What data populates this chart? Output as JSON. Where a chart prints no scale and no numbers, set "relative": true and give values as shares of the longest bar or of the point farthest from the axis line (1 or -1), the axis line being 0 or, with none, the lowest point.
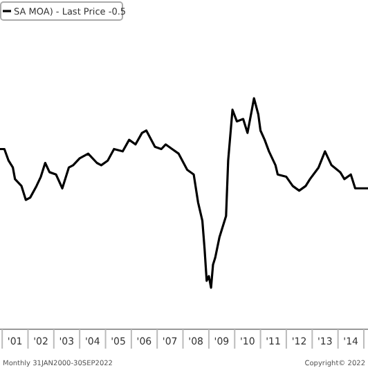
{
  "chart_data": {
    "type": "line",
    "relative": true,
    "legend": "top left",
    "line_style": "solid",
    "marker": "none",
    "x": [
      "2000-12",
      "2001-02",
      "2001-04",
      "2001-06",
      "2001-07",
      "2001-10",
      "2001-12",
      "2002-02",
      "2002-05",
      "2002-07",
      "2002-09",
      "2002-11",
      "2003-02",
      "2003-05",
      "2003-08",
      "2003-10",
      "2004-01",
      "2004-05",
      "2004-09",
      "2004-11",
      "2005-02",
      "2005-05",
      "2005-09",
      "2005-12",
      "2006-03",
      "2006-06",
      "2006-08",
      "2006-12",
      "2007-03",
      "2007-05",
      "2007-08",
      "2007-11",
      "2008-03",
      "2008-06",
      "2008-08",
      "2008-10",
      "2008-11",
      "2008-12",
      "2009-01",
      "2009-02",
      "2009-03",
      "2009-04",
      "2009-06",
      "2009-09",
      "2009-10",
      "2009-12",
      "2010-02",
      "2010-05",
      "2010-07",
      "2010-09",
      "2010-10",
      "2010-12",
      "2011-01",
      "2011-03",
      "2011-05",
      "2011-08",
      "2011-09",
      "2012-01",
      "2012-04",
      "2012-07",
      "2012-10",
      "2012-12",
      "2013-04",
      "2013-07",
      "2013-10",
      "2014-02",
      "2014-04",
      "2014-07",
      "2014-09",
      "2014-12",
      "2015-03"
    ],
    "series": [
      {
        "name": "SA MOA) - Last Price -0.5",
        "color": "#000000",
        "values": [
          0.78,
          0.78,
          0.73,
          0.7,
          0.65,
          0.62,
          0.56,
          0.57,
          0.62,
          0.66,
          0.72,
          0.68,
          0.67,
          0.61,
          0.7,
          0.71,
          0.74,
          0.76,
          0.72,
          0.71,
          0.73,
          0.78,
          0.77,
          0.82,
          0.8,
          0.85,
          0.86,
          0.79,
          0.78,
          0.8,
          0.78,
          0.76,
          0.69,
          0.67,
          0.55,
          0.47,
          0.35,
          0.21,
          0.23,
          0.18,
          0.28,
          0.31,
          0.4,
          0.49,
          0.73,
          0.95,
          0.9,
          0.91,
          0.85,
          0.95,
          1.0,
          0.93,
          0.86,
          0.82,
          0.77,
          0.71,
          0.67,
          0.66,
          0.62,
          0.6,
          0.62,
          0.65,
          0.7,
          0.77,
          0.71,
          0.68,
          0.65,
          0.67,
          0.61,
          0.61,
          0.61
        ]
      }
    ],
    "xlim": [
      "2000-12",
      "2015-03"
    ],
    "xticks": [
      {
        "value": "2001-01",
        "label": null
      },
      {
        "value": "2001-07",
        "label": "'01"
      },
      {
        "value": "2002-01",
        "label": null
      },
      {
        "value": "2002-07",
        "label": "'02"
      },
      {
        "value": "2003-01",
        "label": null
      },
      {
        "value": "2003-07",
        "label": "'03"
      },
      {
        "value": "2004-01",
        "label": null
      },
      {
        "value": "2004-07",
        "label": "'04"
      },
      {
        "value": "2005-01",
        "label": null
      },
      {
        "value": "2005-07",
        "label": "'05"
      },
      {
        "value": "2006-01",
        "label": null
      },
      {
        "value": "2006-07",
        "label": "'06"
      },
      {
        "value": "2007-01",
        "label": null
      },
      {
        "value": "2007-07",
        "label": "'07"
      },
      {
        "value": "2008-01",
        "label": null
      },
      {
        "value": "2008-07",
        "label": "'08"
      },
      {
        "value": "2009-01",
        "label": null
      },
      {
        "value": "2009-07",
        "label": "'09"
      },
      {
        "value": "2010-01",
        "label": null
      },
      {
        "value": "2010-07",
        "label": "'10"
      },
      {
        "value": "2011-01",
        "label": null
      },
      {
        "value": "2011-07",
        "label": "'11"
      },
      {
        "value": "2012-01",
        "label": null
      },
      {
        "value": "2012-07",
        "label": "'12"
      },
      {
        "value": "2013-01",
        "label": null
      },
      {
        "value": "2013-07",
        "label": "'13"
      },
      {
        "value": "2014-01",
        "label": null
      },
      {
        "value": "2014-07",
        "label": "'14"
      },
      {
        "value": "2015-01",
        "label": null
      }
    ],
    "annotations": [
      "Monthly 31JAN2000-30SEP2022",
      "Copyright© 2022"
    ]
  }
}
